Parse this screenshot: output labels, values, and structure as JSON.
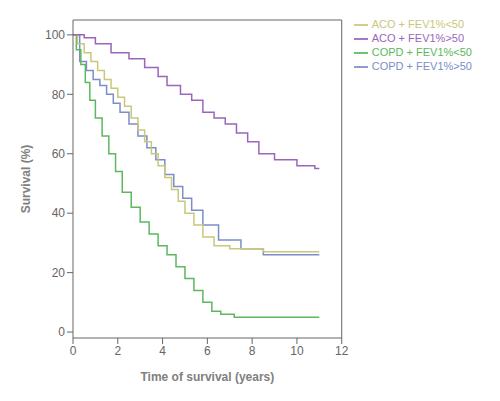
{
  "chart_data": {
    "type": "step",
    "xlabel": "Time of survival (years)",
    "ylabel": "Survival (%)",
    "xlim": [
      0,
      12
    ],
    "ylim": [
      -2,
      105
    ],
    "xticks": [
      0,
      2,
      4,
      6,
      8,
      10,
      12
    ],
    "yticks": [
      0,
      20,
      40,
      60,
      80,
      100
    ],
    "grid": false,
    "legend": "right",
    "series": [
      {
        "name": "COPD + FEV1%>50",
        "color": "#7b8ec8",
        "x": [
          0,
          0.3,
          0.6,
          0.9,
          1.2,
          1.5,
          1.8,
          2.1,
          2.5,
          2.9,
          3.3,
          3.7,
          4.1,
          4.5,
          4.9,
          5.3,
          5.8,
          6.5,
          7.5,
          8.5,
          11.0
        ],
        "values": [
          100,
          91,
          88,
          85,
          83,
          80,
          77,
          74,
          70,
          66,
          62,
          58,
          53,
          49,
          45,
          41,
          36,
          31,
          28,
          26,
          26
        ]
      },
      {
        "name": "COPD + FEV1%<50",
        "color": "#5cb85c",
        "x": [
          0,
          0.15,
          0.35,
          0.55,
          0.75,
          1.0,
          1.3,
          1.6,
          1.9,
          2.2,
          2.6,
          3.0,
          3.4,
          3.8,
          4.2,
          4.6,
          5.0,
          5.4,
          5.8,
          6.2,
          6.6,
          7.2,
          11.0
        ],
        "values": [
          100,
          95,
          90,
          84,
          78,
          72,
          66,
          60,
          54,
          47,
          42,
          37,
          33,
          29,
          26,
          22,
          18,
          14,
          10,
          7,
          6,
          5,
          5
        ]
      },
      {
        "name": "ACO + FEV1%<50",
        "color": "#c8c87a",
        "x": [
          0,
          0.2,
          0.5,
          0.8,
          1.1,
          1.4,
          1.7,
          2.0,
          2.3,
          2.6,
          2.9,
          3.2,
          3.5,
          3.8,
          4.1,
          4.4,
          4.7,
          5.0,
          5.4,
          5.8,
          6.3,
          7.0,
          7.8,
          8.5,
          9.2,
          10.0,
          10.8,
          11.0
        ],
        "values": [
          100,
          97,
          94,
          91,
          88,
          85,
          82,
          79,
          76,
          72,
          68,
          64,
          60,
          56,
          52,
          48,
          44,
          40,
          36,
          32,
          29,
          28,
          28,
          27,
          27,
          27,
          27,
          27
        ]
      },
      {
        "name": "ACO + FEV1%>50",
        "color": "#9966bb",
        "x": [
          0,
          0.2,
          0.5,
          1.0,
          1.7,
          2.5,
          3.2,
          3.8,
          4.2,
          4.8,
          5.3,
          5.8,
          6.3,
          6.8,
          7.3,
          7.8,
          8.3,
          9.0,
          10.0,
          10.8,
          11.0
        ],
        "values": [
          100,
          100,
          99,
          97,
          94,
          92,
          89,
          86,
          83,
          80,
          78,
          74,
          72,
          70,
          67,
          64,
          60,
          58,
          56,
          55,
          55
        ]
      }
    ]
  }
}
